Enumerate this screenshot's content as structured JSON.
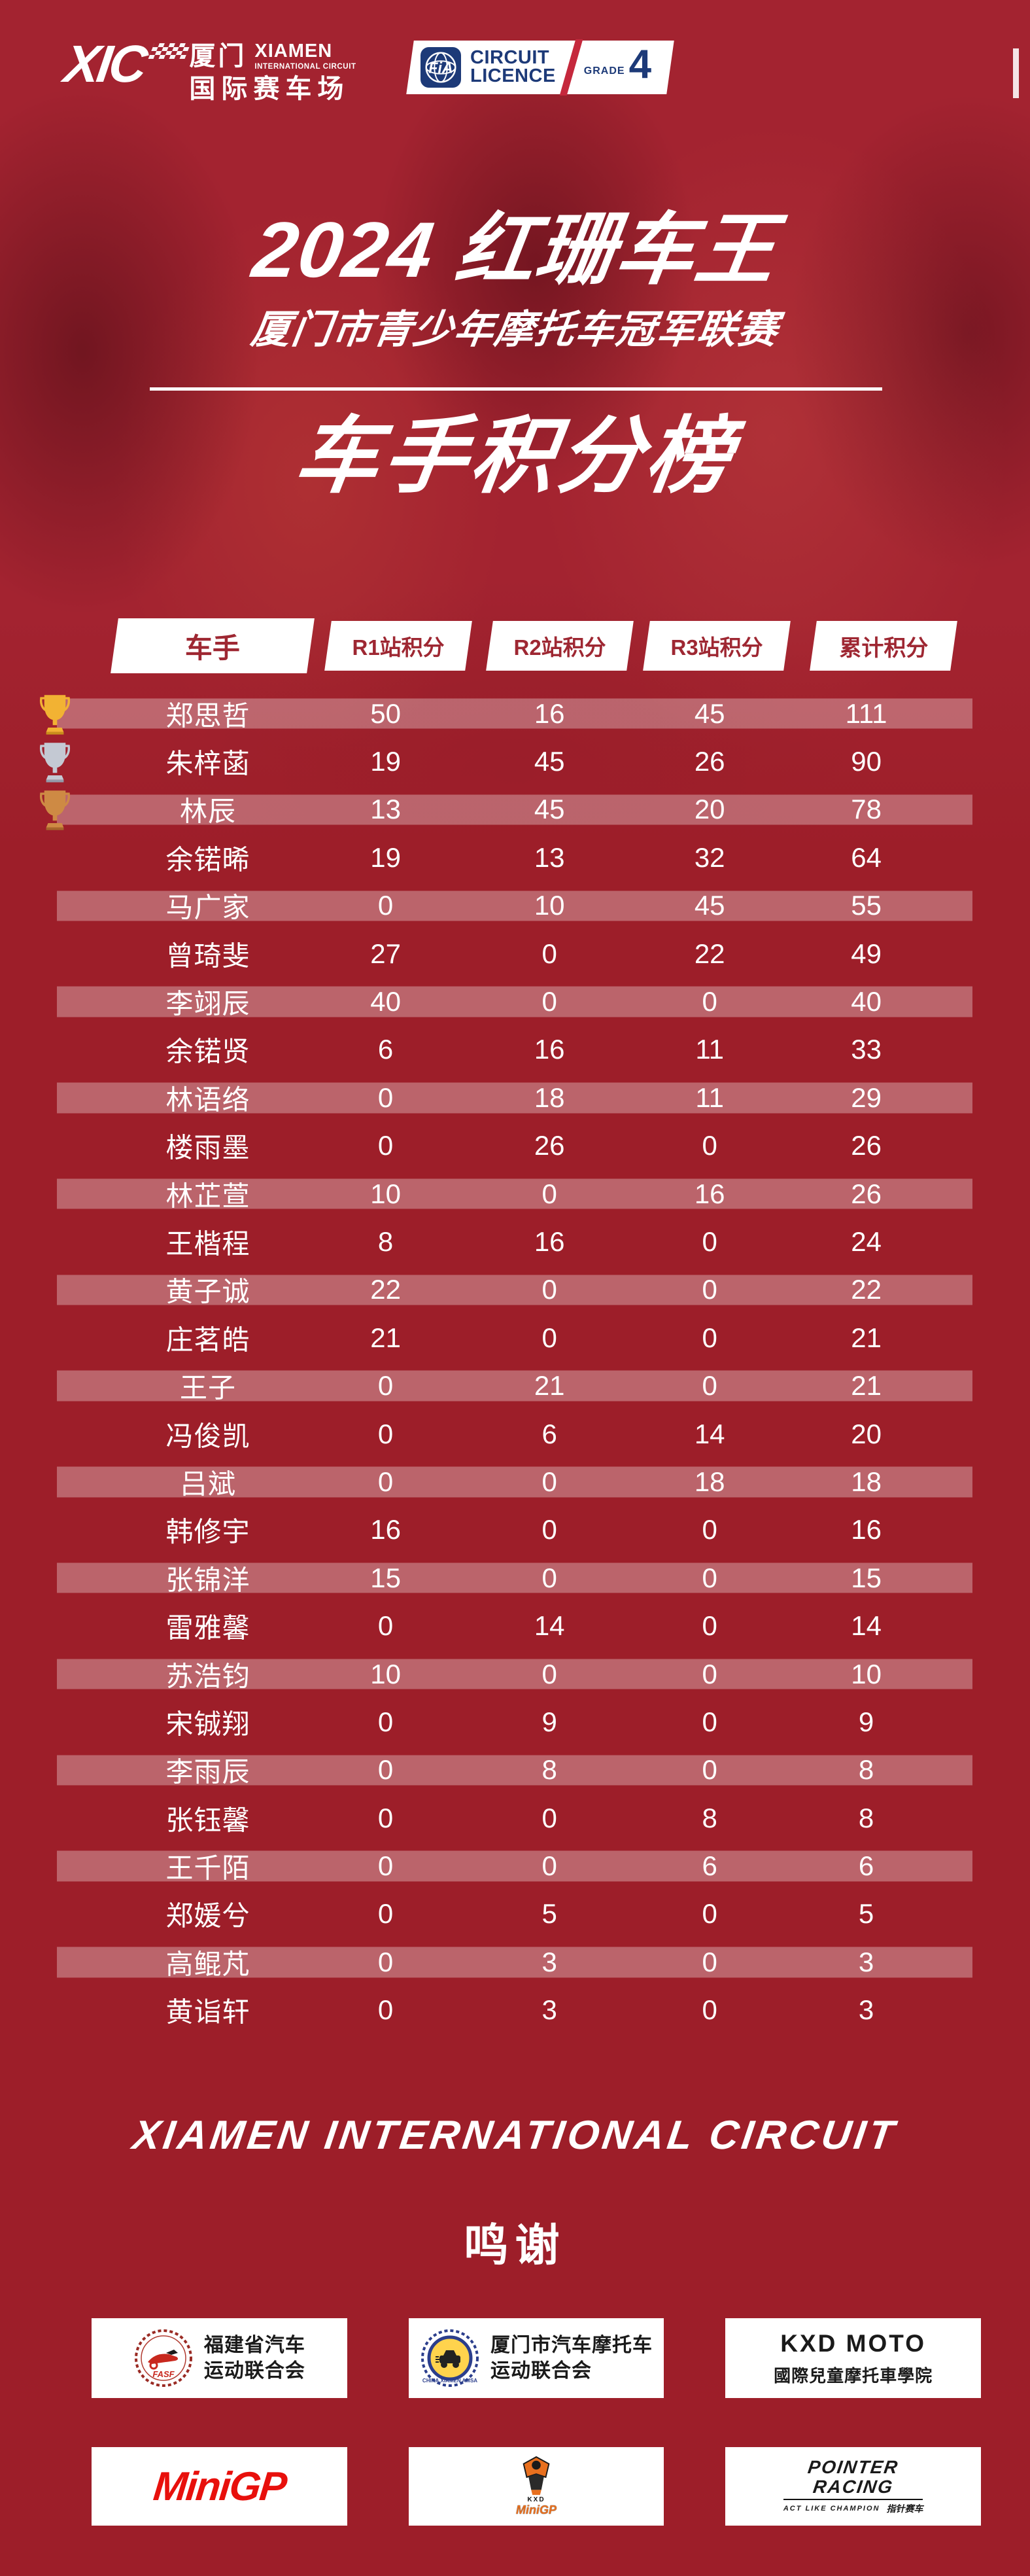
{
  "colors": {
    "base": "#9D1E29",
    "header_box_text": "#9E2732",
    "fia_navy": "#1D3A78",
    "fia_red": "#C5283C",
    "minigp_red": "#E8100C",
    "mascot_orange": "#E8701F",
    "trophy": {
      "gold": {
        "cup": "#F2B233",
        "base": "#C98E1B"
      },
      "silver": {
        "cup": "#C4C9D3",
        "base": "#949CAB"
      },
      "bronze": {
        "cup": "#CE8A44",
        "base": "#A5662B"
      }
    }
  },
  "header": {
    "xic": {
      "abbr": "XIC",
      "cn_top": "厦门",
      "en_top": "XIAMEN",
      "en_sub": "INTERNATIONAL CIRCUIT",
      "cn_bottom": "国际赛车场"
    },
    "fia": {
      "logo_text": "FiA",
      "line1": "CIRCUIT",
      "line2": "LICENCE",
      "grade_label": "GRADE",
      "grade_value": "4"
    }
  },
  "title": {
    "main": "2024 红珊车王",
    "subtitle": "厦门市青少年摩托车冠军联赛",
    "board": "车手积分榜"
  },
  "table": {
    "columns": [
      "车手",
      "R1站积分",
      "R2站积分",
      "R3站积分",
      "累计积分"
    ],
    "rows": [
      {
        "name": "郑思哲",
        "r1": "50",
        "r2": "16",
        "r3": "45",
        "total": "111",
        "trophy": "gold"
      },
      {
        "name": "朱梓菡",
        "r1": "19",
        "r2": "45",
        "r3": "26",
        "total": "90",
        "trophy": "silver"
      },
      {
        "name": "林辰",
        "r1": "13",
        "r2": "45",
        "r3": "20",
        "total": "78",
        "trophy": "bronze"
      },
      {
        "name": "余锘晞",
        "r1": "19",
        "r2": "13",
        "r3": "32",
        "total": "64"
      },
      {
        "name": "马广家",
        "r1": "0",
        "r2": "10",
        "r3": "45",
        "total": "55"
      },
      {
        "name": "曾琦斐",
        "r1": "27",
        "r2": "0",
        "r3": "22",
        "total": "49"
      },
      {
        "name": "李翊辰",
        "r1": "40",
        "r2": "0",
        "r3": "0",
        "total": "40"
      },
      {
        "name": "余锘贤",
        "r1": "6",
        "r2": "16",
        "r3": "11",
        "total": "33"
      },
      {
        "name": "林语络",
        "r1": "0",
        "r2": "18",
        "r3": "11",
        "total": "29"
      },
      {
        "name": "楼雨墨",
        "r1": "0",
        "r2": "26",
        "r3": "0",
        "total": "26"
      },
      {
        "name": "林芷萱",
        "r1": "10",
        "r2": "0",
        "r3": "16",
        "total": "26"
      },
      {
        "name": "王楷程",
        "r1": "8",
        "r2": "16",
        "r3": "0",
        "total": "24"
      },
      {
        "name": "黄子诚",
        "r1": "22",
        "r2": "0",
        "r3": "0",
        "total": "22"
      },
      {
        "name": "庄茗皓",
        "r1": "21",
        "r2": "0",
        "r3": "0",
        "total": "21"
      },
      {
        "name": "王子",
        "r1": "0",
        "r2": "21",
        "r3": "0",
        "total": "21"
      },
      {
        "name": "冯俊凯",
        "r1": "0",
        "r2": "6",
        "r3": "14",
        "total": "20"
      },
      {
        "name": "吕斌",
        "r1": "0",
        "r2": "0",
        "r3": "18",
        "total": "18"
      },
      {
        "name": "韩修宇",
        "r1": "16",
        "r2": "0",
        "r3": "0",
        "total": "16"
      },
      {
        "name": "张锦洋",
        "r1": "15",
        "r2": "0",
        "r3": "0",
        "total": "15"
      },
      {
        "name": "雷雅馨",
        "r1": "0",
        "r2": "14",
        "r3": "0",
        "total": "14"
      },
      {
        "name": "苏浩钧",
        "r1": "10",
        "r2": "0",
        "r3": "0",
        "total": "10"
      },
      {
        "name": "宋铖翔",
        "r1": "0",
        "r2": "9",
        "r3": "0",
        "total": "9"
      },
      {
        "name": "李雨辰",
        "r1": "0",
        "r2": "8",
        "r3": "0",
        "total": "8"
      },
      {
        "name": "张钰馨",
        "r1": "0",
        "r2": "0",
        "r3": "8",
        "total": "8"
      },
      {
        "name": "王千陌",
        "r1": "0",
        "r2": "0",
        "r3": "6",
        "total": "6"
      },
      {
        "name": "郑媛兮",
        "r1": "0",
        "r2": "5",
        "r3": "0",
        "total": "5"
      },
      {
        "name": "高鲲芃",
        "r1": "0",
        "r2": "3",
        "r3": "0",
        "total": "3"
      },
      {
        "name": "黄诣轩",
        "r1": "0",
        "r2": "3",
        "r3": "0",
        "total": "3"
      }
    ]
  },
  "footer": {
    "circuit_name": "XIAMEN INTERNATIONAL CIRCUIT",
    "thanks": "鸣谢",
    "sponsors": [
      {
        "line1": "福建省汽车",
        "line2": "运动联合会",
        "logo_text": "FASF"
      },
      {
        "line1": "厦门市汽车摩托车",
        "line2": "运动联合会",
        "logo_text": "CHINA.XIAMEN AMSA"
      },
      {
        "line1": "KXD MOTO",
        "line2": "國際兒童摩托車學院"
      },
      {
        "word": "MiniGP"
      },
      {
        "kxd_label": "KXD",
        "name": "MiniGP"
      },
      {
        "line1": "POINTER",
        "line2": "RACING",
        "tagline": "ACT LIKE CHAMPION",
        "cn": "指针赛车"
      }
    ]
  }
}
